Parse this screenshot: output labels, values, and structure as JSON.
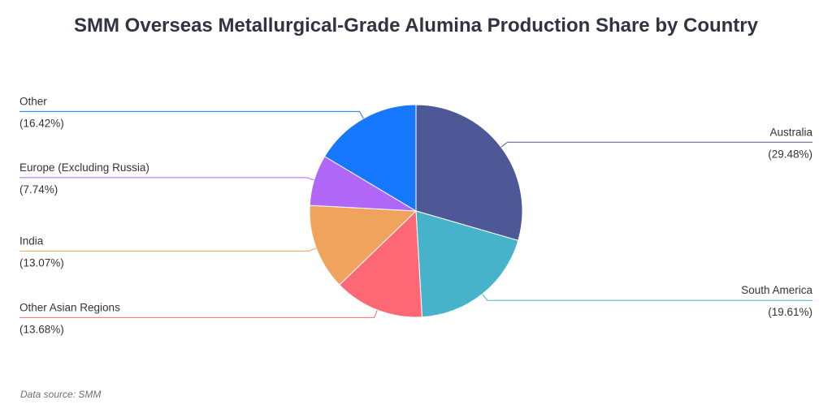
{
  "title": "SMM Overseas Metallurgical-Grade Alumina Production Share by Country",
  "source_note": "Data source:  SMM",
  "chart_data": {
    "type": "pie",
    "title": "SMM Overseas Metallurgical-Grade Alumina Production Share by Country",
    "categories": [
      "Australia",
      "South America",
      "Other Asian Regions",
      "India",
      "Europe (Excluding Russia)",
      "Other"
    ],
    "values": [
      29.48,
      19.61,
      13.68,
      13.07,
      7.74,
      16.42
    ],
    "value_labels": [
      "(29.48%)",
      "(19.61%)",
      "(13.68%)",
      "(13.07%)",
      "(7.74%)",
      "(16.42%)"
    ],
    "colors": [
      "#4e5896",
      "#46b3cb",
      "#fe6774",
      "#f0a35d",
      "#b066f7",
      "#1677ff"
    ],
    "units": "%"
  }
}
